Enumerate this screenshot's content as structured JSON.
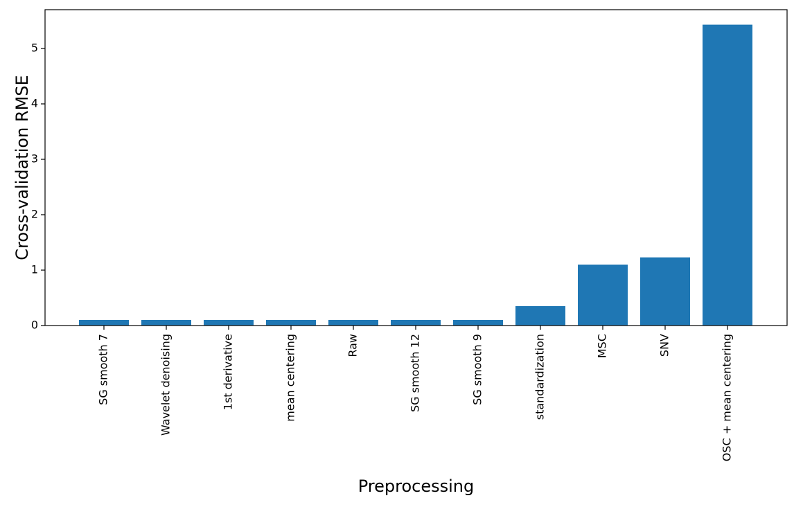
{
  "chart_data": {
    "type": "bar",
    "categories": [
      "SG smooth 7",
      "Wavelet denoising",
      "1st derivative",
      "mean centering",
      "Raw",
      "SG smooth 12",
      "SG smooth 9",
      "standardization",
      "MSC",
      "SNV",
      "OSC + mean centering"
    ],
    "values": [
      0.1,
      0.1,
      0.1,
      0.1,
      0.1,
      0.1,
      0.1,
      0.35,
      1.1,
      1.23,
      5.43
    ],
    "xlabel": "Preprocessing",
    "ylabel": "Cross-validation RMSE",
    "ylim": [
      0,
      5.7
    ],
    "yticks": [
      0,
      1,
      2,
      3,
      4,
      5
    ],
    "grid": false,
    "bar_color": "#1f77b4"
  }
}
